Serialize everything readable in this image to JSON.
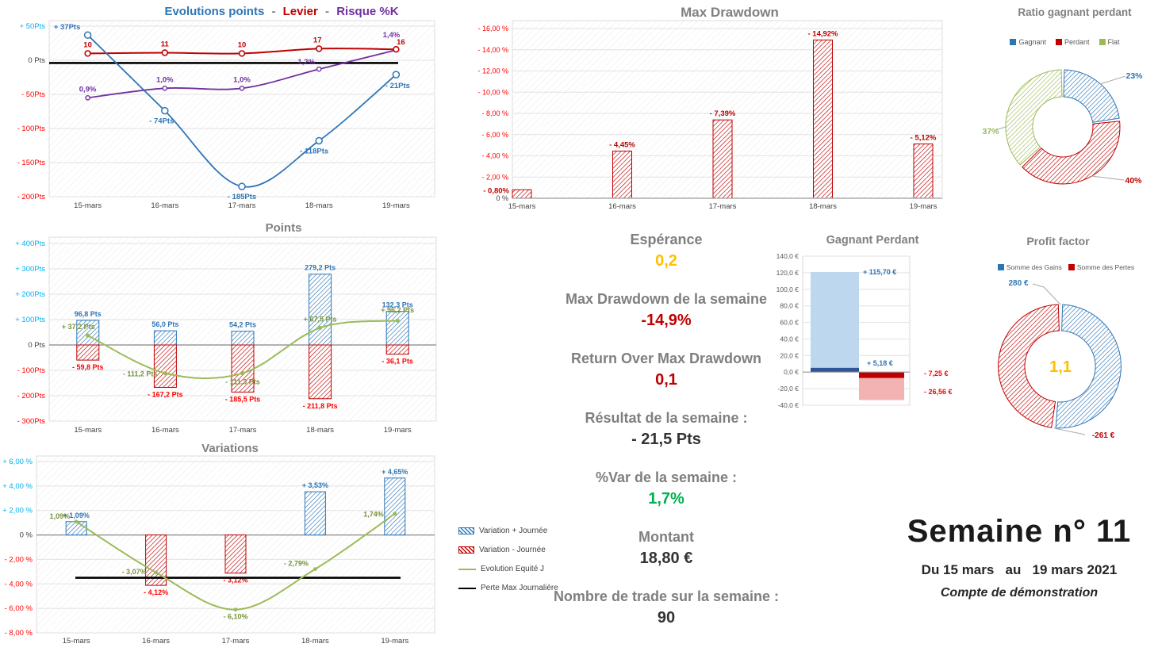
{
  "dates": [
    "15-mars",
    "16-mars",
    "17-mars",
    "18-mars",
    "19-mars"
  ],
  "colors": {
    "blue": "#2E75B6",
    "red": "#C00000",
    "bright_red": "#FF0000",
    "purple": "#7030A0",
    "green_line": "#9BBB59",
    "teal_ticks": "#00B0F0",
    "orange": "#FFC000",
    "value_green": "#00B050",
    "title_gray": "#808080",
    "light_blue": "#BDD7EE",
    "light_red": "#F4B3B3"
  },
  "chart_data": [
    {
      "id": "evolutions",
      "type": "line",
      "title_sep": "-",
      "categories": [
        "15-mars",
        "16-mars",
        "17-mars",
        "18-mars",
        "19-mars"
      ],
      "ylim": [
        -200,
        50
      ],
      "ytick_values": [
        50,
        0,
        -50,
        -100,
        -150,
        -200
      ],
      "ylabel_ticks": [
        "+ 50Pts",
        "0 Pts",
        "- 50Pts",
        "- 100Pts",
        "- 150Pts",
        "- 200Pts"
      ],
      "max_loss_line_pts": -4,
      "series": [
        {
          "name": "Evolutions points",
          "color": "#2E75B6",
          "values": [
            37,
            -74,
            -185,
            -118,
            -21
          ],
          "labels": [
            "+ 37Pts",
            "- 74Pts",
            "- 185Pts",
            "- 118Pts",
            "- 21Pts"
          ]
        },
        {
          "name": "Levier",
          "color": "#C00000",
          "values": [
            10,
            11,
            10,
            17,
            16
          ],
          "labels": [
            "10",
            "11",
            "10",
            "17",
            "16"
          ]
        },
        {
          "name": "Risque %K",
          "color": "#7030A0",
          "values": [
            0.9,
            1.0,
            1.0,
            1.2,
            1.4
          ],
          "labels": [
            "0,9%",
            "1,0%",
            "1,0%",
            "1,2%",
            "1,4%"
          ],
          "axis_map": {
            "v0": 0.9,
            "pts0": -55,
            "v1": 1.4,
            "pts1": 15
          }
        }
      ]
    },
    {
      "id": "max_drawdown",
      "type": "bar",
      "title": "Max Drawdown",
      "categories": [
        "15-mars",
        "16-mars",
        "17-mars",
        "18-mars",
        "19-mars"
      ],
      "values": [
        -0.8,
        -4.45,
        -7.39,
        -14.92,
        -5.12
      ],
      "labels": [
        "- 0,80%",
        "- 4,45%",
        "- 7,39%",
        "- 14,92%",
        "- 5,12%"
      ],
      "ylim": [
        0,
        -16
      ],
      "ytick_values": [
        -16,
        -14,
        -12,
        -10,
        -8,
        -6,
        -4,
        -2,
        0
      ],
      "ytick_labels": [
        "- 16,00 %",
        "- 14,00 %",
        "- 12,00 %",
        "- 10,00 %",
        "- 8,00 %",
        "- 6,00 %",
        "- 4,00 %",
        "- 2,00 %",
        "0 %"
      ]
    },
    {
      "id": "ratio",
      "type": "pie",
      "title": "Ratio gagnant perdant",
      "legend": [
        "Gagnant",
        "Perdant",
        "Flat"
      ],
      "values": [
        23,
        40,
        37
      ],
      "labels": [
        "23%",
        "40%",
        "37%"
      ],
      "colors": [
        "#2E75B6",
        "#C00000",
        "#9BBB59"
      ]
    },
    {
      "id": "points",
      "type": "bar",
      "title": "Points",
      "categories": [
        "15-mars",
        "16-mars",
        "17-mars",
        "18-mars",
        "19-mars"
      ],
      "ylim": [
        -300,
        400
      ],
      "ytick_values": [
        400,
        300,
        200,
        100,
        0,
        -100,
        -200,
        -300
      ],
      "ytick_labels": [
        "+ 400Pts",
        "+ 300Pts",
        "+ 200Pts",
        "+ 100Pts",
        "0 Pts",
        "- 100Pts",
        "- 200Pts",
        "- 300Pts"
      ],
      "series": [
        {
          "name": "Variation + Journée",
          "color": "#2E75B6",
          "values": [
            96.8,
            56.0,
            54.2,
            279.2,
            132.3
          ],
          "labels": [
            "96,8 Pts",
            "56,0 Pts",
            "54,2 Pts",
            "279,2 Pts",
            "132,3 Pts"
          ]
        },
        {
          "name": "Variation - Journée",
          "color": "#C00000",
          "values": [
            -59.8,
            -167.2,
            -185.5,
            -211.8,
            -36.1
          ],
          "labels": [
            "- 59,8 Pts",
            "- 167,2 Pts",
            "- 185,5 Pts",
            "- 211,8 Pts",
            "- 36,1 Pts"
          ]
        },
        {
          "name": "Evolution Equité J",
          "color": "#9BBB59",
          "values": [
            37.2,
            -111.2,
            -111.3,
            67.5,
            96.2
          ],
          "labels": [
            "+ 37,2 Pts",
            "- 111,2 Pts",
            "- 111,3 Pts",
            "+ 67,5 Pts",
            "+ 96,2 Pts"
          ]
        }
      ]
    },
    {
      "id": "variations",
      "type": "bar",
      "title": "Variations",
      "categories": [
        "15-mars",
        "16-mars",
        "17-mars",
        "18-mars",
        "19-mars"
      ],
      "ylim": [
        -8,
        6
      ],
      "ytick_values": [
        6,
        4,
        2,
        0,
        -2,
        -4,
        -6,
        -8
      ],
      "ytick_labels": [
        "+ 6,00 %",
        "+ 4,00 %",
        "+ 2,00 %",
        "0 %",
        "- 2,00 %",
        "- 4,00 %",
        "- 6,00 %",
        "- 8,00 %"
      ],
      "series": [
        {
          "name": "Variation + Journée",
          "color": "#2E75B6",
          "values": [
            1.09,
            null,
            null,
            3.53,
            4.65
          ],
          "labels": [
            "+ 1,09%",
            "",
            "",
            "+ 3,53%",
            "+ 4,65%"
          ]
        },
        {
          "name": "Variation - Journée",
          "color": "#C00000",
          "values": [
            null,
            -4.12,
            -3.12,
            null,
            null
          ],
          "labels": [
            "",
            "- 4,12%",
            "- 3,12%",
            "",
            ""
          ]
        },
        {
          "name": "Evolution Equité J",
          "color": "#9BBB59",
          "values": [
            1.09,
            -3.07,
            -6.1,
            -2.79,
            1.74
          ],
          "labels": [
            "1,09%",
            "- 3,07%",
            "- 6,10%",
            "- 2,79%",
            "1,74%"
          ]
        },
        {
          "name": "Perte Max Journalière",
          "color": "#000000",
          "values": [
            -3.5,
            -3.5,
            -3.5,
            -3.5,
            -3.5
          ]
        }
      ]
    },
    {
      "id": "gagnant_perdant",
      "type": "bar",
      "title": "Gagnant Perdant",
      "ylim": [
        -40,
        140
      ],
      "ytick_values": [
        140,
        120,
        100,
        80,
        60,
        40,
        20,
        0,
        -20,
        -40
      ],
      "ytick_labels": [
        "140,0 €",
        "120,0 €",
        "100,0 €",
        "80,0 €",
        "60,0 €",
        "40,0 €",
        "20,0 €",
        "0,0 €",
        "-20,0 €",
        "-40,0 €"
      ],
      "segments": [
        {
          "name": "gains",
          "parts": [
            {
              "value": 5.18,
              "label": "+ 5,18 €",
              "color": "#2F5597"
            },
            {
              "value": 115.7,
              "label": "+ 115,70 €",
              "color": "#BDD7EE"
            }
          ]
        },
        {
          "name": "pertes",
          "parts": [
            {
              "value": -7.25,
              "label": "- 7,25 €",
              "color": "#C00000"
            },
            {
              "value": -26.56,
              "label": "- 26,56 €",
              "color": "#F4B3B3"
            }
          ]
        }
      ]
    },
    {
      "id": "profit_factor",
      "type": "pie",
      "title": "Profit factor",
      "legend": [
        "Somme des Gains",
        "Somme des Pertes"
      ],
      "values": [
        280,
        261
      ],
      "labels": [
        "280 €",
        "-261 €"
      ],
      "center_label": "1,1",
      "colors": [
        "#2E75B6",
        "#C00000"
      ]
    }
  ],
  "stats": {
    "items": [
      {
        "label": "Espérance",
        "value": "0,2",
        "color": "#FFC000"
      },
      {
        "label": "Max Drawdown de la semaine",
        "value": "-14,9%",
        "color": "#C00000"
      },
      {
        "label": "Return Over Max Drawdown",
        "value": "0,1",
        "color": "#C00000"
      },
      {
        "label": "Résultat de la semaine :",
        "value": "- 21,5 Pts",
        "color": "#333333"
      },
      {
        "label": "%Var de la semaine :",
        "value": "1,7%",
        "color": "#00B050"
      },
      {
        "label": "Montant",
        "value": "18,80 €",
        "color": "#333333"
      },
      {
        "label": "Nombre de trade sur la semaine :",
        "value": "90",
        "color": "#333333"
      }
    ]
  },
  "legend_box": {
    "items": [
      {
        "label": "Variation + Journée",
        "swatch": "hatch-blue"
      },
      {
        "label": "Variation - Journée",
        "swatch": "hatch-red"
      },
      {
        "label": "Evolution  Equité J",
        "swatch": "line-green"
      },
      {
        "label": "Perte Max Journalière",
        "swatch": "line-black"
      }
    ]
  },
  "week": {
    "title": "Semaine n° 11",
    "period": "Du 15 mars   au   19 mars 2021",
    "account": "Compte de démonstration"
  }
}
